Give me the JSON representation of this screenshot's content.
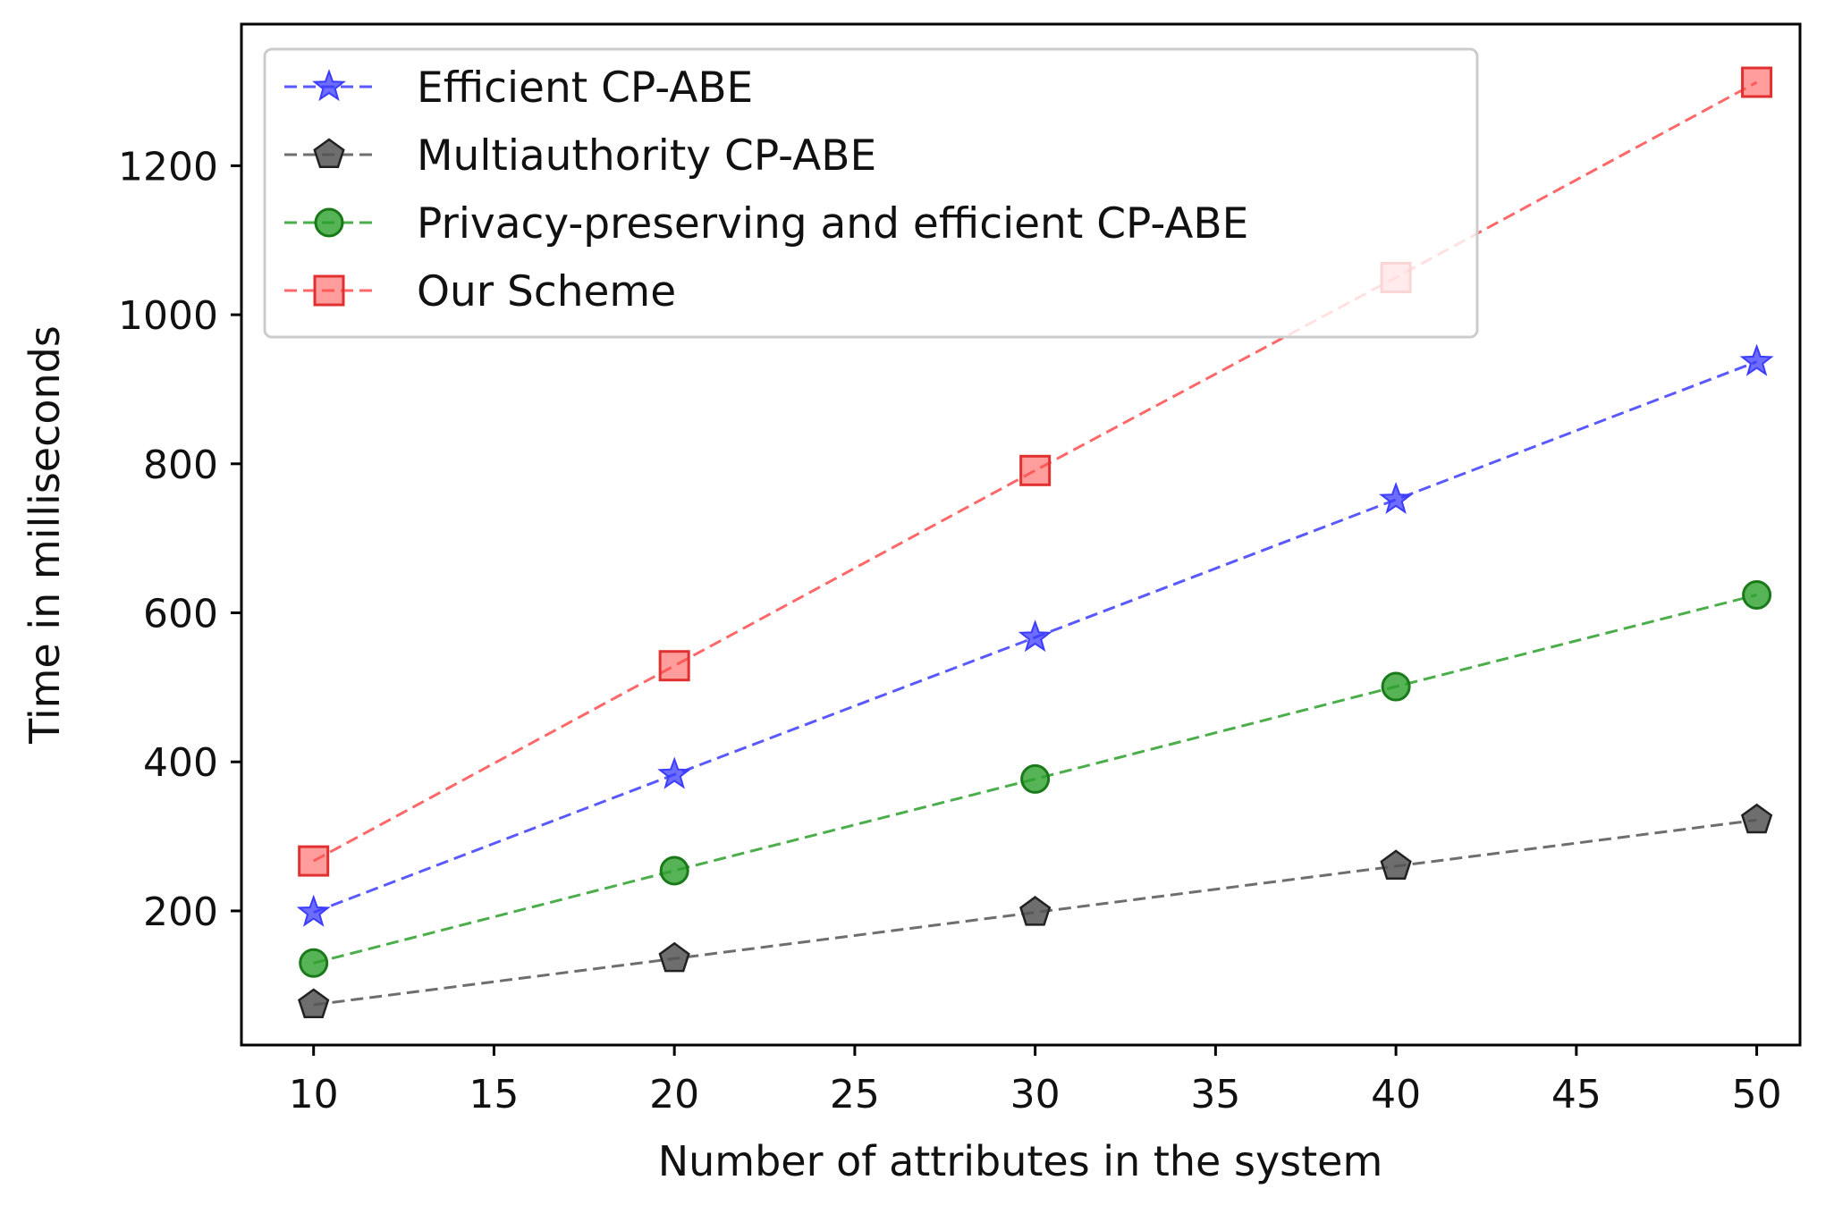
{
  "chart_data": {
    "type": "line",
    "title": "",
    "xlabel": "Number of attributes in the system",
    "ylabel": "Time in milliseconds",
    "x": [
      10,
      20,
      30,
      40,
      50
    ],
    "xlim": [
      8,
      51.2
    ],
    "ylim": [
      20,
      1390
    ],
    "xticks": [
      10,
      15,
      20,
      25,
      30,
      35,
      40,
      45,
      50
    ],
    "yticks": [
      200,
      400,
      600,
      800,
      1000,
      1200
    ],
    "grid": false,
    "legend_position": "top-left",
    "series": [
      {
        "name": "Efficient CP-ABE",
        "color": "#3c3cff",
        "marker": "star",
        "linestyle": "dashed",
        "values": [
          198,
          383,
          567,
          752,
          937
        ]
      },
      {
        "name": "Multiauthority CP-ABE",
        "color": "#555555",
        "marker": "pentagon",
        "linestyle": "dashed",
        "values": [
          74,
          136,
          198,
          260,
          322
        ]
      },
      {
        "name": "Privacy-preserving and efficient CP-ABE",
        "color": "#2ca02c",
        "marker": "circle",
        "linestyle": "dashed",
        "values": [
          130,
          254,
          377,
          501,
          624
        ]
      },
      {
        "name": "Our Scheme",
        "color": "#ff4d4d",
        "marker": "square",
        "linestyle": "dashed",
        "values": [
          267,
          529,
          791,
          1050,
          1312
        ]
      }
    ]
  }
}
